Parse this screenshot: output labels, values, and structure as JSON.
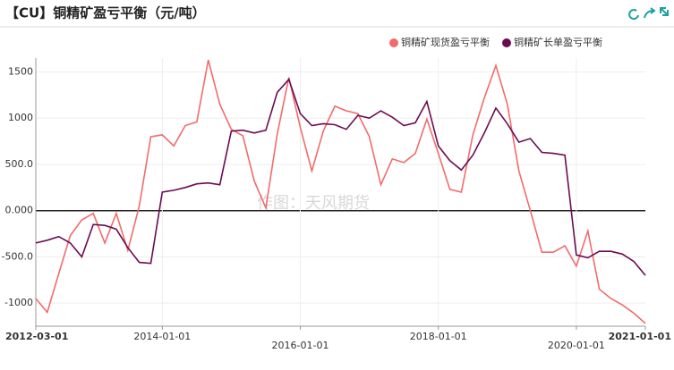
{
  "chart_data": {
    "type": "line",
    "title": "【CU】铜精矿盈亏平衡（元/吨）",
    "watermark": "作图：天风期货",
    "x": [
      "2012-03-01",
      "2012-05-01",
      "2012-07-01",
      "2012-09-01",
      "2012-11-01",
      "2013-01-01",
      "2013-03-01",
      "2013-05-01",
      "2013-07-01",
      "2013-09-01",
      "2013-11-01",
      "2014-01-01",
      "2014-03-01",
      "2014-05-01",
      "2014-07-01",
      "2014-09-01",
      "2014-11-01",
      "2015-01-01",
      "2015-03-01",
      "2015-05-01",
      "2015-07-01",
      "2015-09-01",
      "2015-11-01",
      "2016-01-01",
      "2016-03-01",
      "2016-05-01",
      "2016-07-01",
      "2016-09-01",
      "2016-11-01",
      "2017-01-01",
      "2017-03-01",
      "2017-05-01",
      "2017-07-01",
      "2017-09-01",
      "2017-11-01",
      "2018-01-01",
      "2018-03-01",
      "2018-05-01",
      "2018-07-01",
      "2018-09-01",
      "2018-11-01",
      "2019-01-01",
      "2019-03-01",
      "2019-05-01",
      "2019-07-01",
      "2019-09-01",
      "2019-11-01",
      "2020-01-01",
      "2020-03-01",
      "2020-05-01",
      "2020-07-01",
      "2020-09-01",
      "2020-11-01",
      "2021-01-01"
    ],
    "series": [
      {
        "name": "铜精矿现货盈亏平衡",
        "color": "#f26b6b",
        "values": [
          -950,
          -1100,
          -680,
          -270,
          -100,
          -30,
          -350,
          -30,
          -430,
          50,
          800,
          820,
          700,
          920,
          960,
          1630,
          1150,
          880,
          810,
          320,
          30,
          830,
          1440,
          900,
          430,
          860,
          1130,
          1080,
          1050,
          800,
          280,
          560,
          520,
          620,
          990,
          620,
          230,
          200,
          820,
          1220,
          1570,
          1150,
          430,
          0,
          -450,
          -450,
          -380,
          -600,
          -220,
          -850,
          -950,
          -1020,
          -1110,
          -1220
        ]
      },
      {
        "name": "铜精矿长单盈亏平衡",
        "color": "#6b0b52",
        "values": [
          -350,
          -320,
          -280,
          -350,
          -500,
          -150,
          -160,
          -200,
          -400,
          -560,
          -570,
          200,
          220,
          250,
          290,
          300,
          280,
          860,
          870,
          840,
          870,
          1280,
          1420,
          1050,
          920,
          940,
          930,
          880,
          1030,
          1000,
          1080,
          1010,
          920,
          950,
          1180,
          700,
          540,
          440,
          600,
          840,
          1110,
          940,
          740,
          780,
          630,
          620,
          600,
          -480,
          -510,
          -440,
          -440,
          -470,
          -550,
          -700
        ]
      }
    ],
    "xlim": [
      "2012-03-01",
      "2021-01-01"
    ],
    "xticks": [
      "2012-03-01",
      "2014-01-01",
      "2016-01-01",
      "2018-01-01",
      "2020-01-01",
      "2021-01-01"
    ],
    "ylim": [
      -1250,
      1650
    ],
    "yticks": [
      {
        "value": -1000,
        "label": "-1000"
      },
      {
        "value": -500,
        "label": "-500.0"
      },
      {
        "value": 0,
        "label": "0.000"
      },
      {
        "value": 500,
        "label": "500.0"
      },
      1000,
      1500
    ],
    "grid": true,
    "legend": "top-right"
  }
}
